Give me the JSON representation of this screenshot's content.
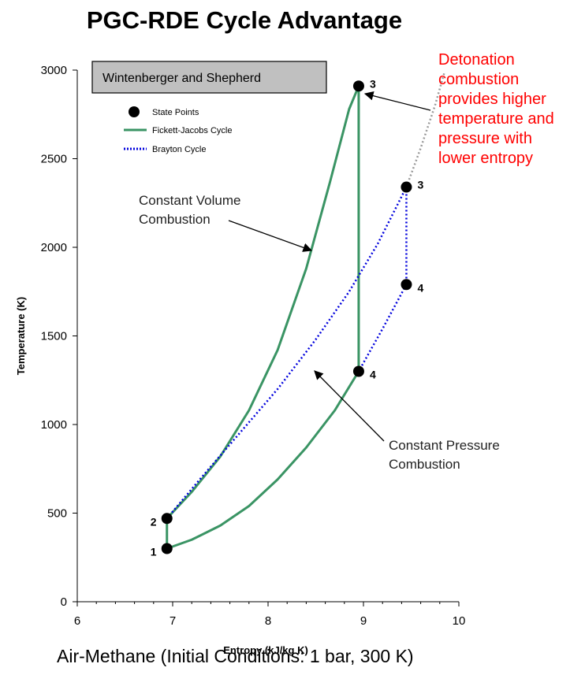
{
  "chart_data": {
    "type": "line",
    "title": "PGC-RDE Cycle Advantage",
    "subtitle": "Air-Methane (Initial Conditions: 1 bar, 300 K)",
    "source_box": "Wintenberger and Shepherd",
    "xlabel": "Entropy (kJ/kg K)",
    "ylabel": "Temperature (K)",
    "xlim": [
      6,
      10
    ],
    "ylim": [
      0,
      3000
    ],
    "x_ticks": [
      6,
      7,
      8,
      9,
      10
    ],
    "y_ticks": [
      0,
      500,
      1000,
      1500,
      2000,
      2500,
      3000
    ],
    "legend": {
      "placement": "top-left",
      "entries": [
        {
          "label": "State Points",
          "marker": "circle",
          "color": "#000000"
        },
        {
          "label": "Fickett-Jacobs Cycle",
          "style": "solid",
          "color": "#3a9464"
        },
        {
          "label": "Brayton Cycle",
          "style": "dotted",
          "color": "#0000dd"
        }
      ]
    },
    "series": [
      {
        "name": "Fickett-Jacobs Cycle",
        "color": "#3a9464",
        "style": "solid",
        "x": [
          6.94,
          6.94,
          7.2,
          7.5,
          7.8,
          8.1,
          8.4,
          8.65,
          8.85,
          8.95,
          8.95,
          8.7,
          8.4,
          8.1,
          7.8,
          7.5,
          7.2,
          6.94
        ],
        "y": [
          300,
          470,
          620,
          820,
          1080,
          1420,
          1880,
          2370,
          2780,
          2910,
          1300,
          1080,
          870,
          690,
          540,
          430,
          350,
          300
        ]
      },
      {
        "name": "Brayton Cycle",
        "color": "#0000dd",
        "style": "dotted",
        "x": [
          6.94,
          7.3,
          7.7,
          8.1,
          8.5,
          8.85,
          9.15,
          9.45,
          9.45,
          9.2,
          8.95
        ],
        "y": [
          470,
          700,
          950,
          1200,
          1480,
          1750,
          2020,
          2340,
          1790,
          1540,
          1300
        ]
      },
      {
        "color": "#999999",
        "style": "dotted",
        "x": [
          9.45,
          9.6,
          9.75,
          9.85
        ],
        "y": [
          2340,
          2560,
          2800,
          2990
        ]
      }
    ],
    "state_points": [
      {
        "label": "1",
        "x": 6.94,
        "y": 300
      },
      {
        "label": "2",
        "x": 6.94,
        "y": 470
      },
      {
        "label": "3",
        "x": 8.95,
        "y": 2910
      },
      {
        "label": "4",
        "x": 8.95,
        "y": 1300
      },
      {
        "label": "3",
        "x": 9.45,
        "y": 2340
      },
      {
        "label": "4",
        "x": 9.45,
        "y": 1790
      }
    ],
    "annotations": [
      {
        "text": [
          "Constant Volume",
          "Combustion"
        ],
        "color": "#222222"
      },
      {
        "text": [
          "Constant Pressure",
          "Combustion"
        ],
        "color": "#222222"
      },
      {
        "text": [
          "Detonation",
          "combustion",
          "provides higher",
          "temperature and",
          "pressure with",
          "lower entropy"
        ],
        "color": "#ff0000"
      }
    ]
  }
}
